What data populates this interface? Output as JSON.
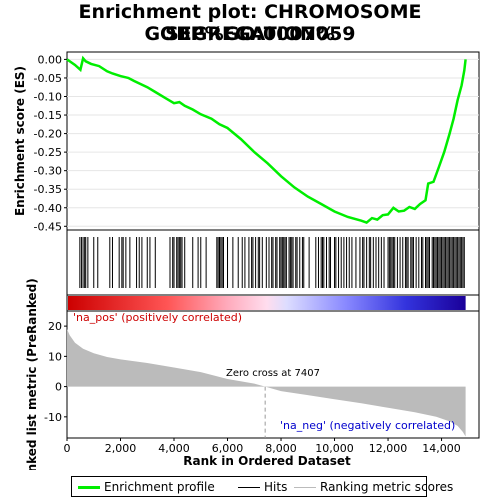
{
  "title_line1": "Enrichment plot: CHROMOSOME SEGREGATION%",
  "title_line2": "GOBP%GO:0007059",
  "colors": {
    "enrichment": "#00ee00",
    "hits": "#000000",
    "metric": "#bbbbbb",
    "pos_label": "#cc0000",
    "neg_label": "#0000cc"
  },
  "labels": {
    "pos": "'na_pos' (positively correlated)",
    "neg": "'na_neg' (negatively correlated)",
    "zero_cross": "Zero cross at 7407"
  },
  "legend": {
    "enrichment": "Enrichment profile",
    "hits": "Hits",
    "metric": "Ranking metric scores"
  },
  "chart_data": [
    {
      "type": "line",
      "ylabel": "Enrichment score (ES)",
      "ylim": [
        -0.46,
        0.02
      ],
      "yticks": [
        0.0,
        -0.05,
        -0.1,
        -0.15,
        -0.2,
        -0.25,
        -0.3,
        -0.35,
        -0.4,
        -0.45
      ],
      "ytick_labels": [
        "0.00",
        "-0.05",
        "-0.10",
        "-0.15",
        "-0.20",
        "-0.25",
        "-0.30",
        "-0.35",
        "-0.40",
        "-0.45"
      ],
      "x": [
        0,
        300,
        500,
        600,
        700,
        900,
        1200,
        1500,
        1700,
        2000,
        2300,
        2500,
        3000,
        3300,
        3700,
        4000,
        4200,
        4400,
        4700,
        5000,
        5400,
        5700,
        6000,
        6500,
        7000,
        7500,
        8000,
        8500,
        9000,
        9500,
        10000,
        10500,
        11000,
        11200,
        11400,
        11600,
        11800,
        12000,
        12200,
        12400,
        12600,
        12800,
        13000,
        13200,
        13400,
        13500,
        13700,
        13900,
        14100,
        14300,
        14450,
        14600,
        14750,
        14850,
        14900
      ],
      "series": [
        {
          "values": [
            0.0,
            -0.015,
            -0.028,
            0.003,
            -0.005,
            -0.012,
            -0.018,
            -0.032,
            -0.038,
            -0.045,
            -0.05,
            -0.058,
            -0.075,
            -0.088,
            -0.105,
            -0.118,
            -0.115,
            -0.125,
            -0.135,
            -0.148,
            -0.16,
            -0.175,
            -0.185,
            -0.215,
            -0.25,
            -0.28,
            -0.315,
            -0.345,
            -0.37,
            -0.39,
            -0.41,
            -0.425,
            -0.435,
            -0.44,
            -0.428,
            -0.432,
            -0.42,
            -0.418,
            -0.4,
            -0.41,
            -0.408,
            -0.398,
            -0.403,
            -0.39,
            -0.38,
            -0.335,
            -0.33,
            -0.29,
            -0.25,
            -0.2,
            -0.16,
            -0.11,
            -0.07,
            -0.03,
            0.0
          ]
        }
      ]
    },
    {
      "type": "area",
      "xlabel": "Rank in Ordered Dataset",
      "ylabel": "Ranked list metric (PreRanked)",
      "xlim": [
        0,
        15400
      ],
      "ylim": [
        -17,
        25
      ],
      "xticks": [
        0,
        2000,
        4000,
        6000,
        8000,
        10000,
        12000,
        14000
      ],
      "xtick_labels": [
        "0",
        "2,000",
        "4,000",
        "6,000",
        "8,000",
        "10,000",
        "12,000",
        "14,000"
      ],
      "yticks": [
        20,
        10,
        0,
        -10
      ],
      "ytick_labels": [
        "20",
        "10",
        "0",
        "-10"
      ],
      "x": [
        0,
        100,
        300,
        600,
        1000,
        1500,
        2000,
        3000,
        4000,
        5000,
        6000,
        7000,
        7407,
        8000,
        9000,
        10000,
        11000,
        12000,
        13000,
        13800,
        14300,
        14600,
        14800,
        14900
      ],
      "series": [
        {
          "values": [
            19,
            17,
            14.5,
            12.5,
            11,
            9.8,
            9,
            7.8,
            6.3,
            4.8,
            2.5,
            1.0,
            0,
            -1.5,
            -2.8,
            -4.2,
            -5.5,
            -7.0,
            -8.5,
            -10.0,
            -11.5,
            -13.0,
            -15.0,
            -16.5
          ]
        }
      ],
      "zero_cross": 7407,
      "hits": [
        480,
        540,
        600,
        660,
        700,
        780,
        1000,
        1150,
        1600,
        1700,
        1950,
        2050,
        2100,
        2200,
        2350,
        2600,
        2700,
        2800,
        3000,
        3100,
        3300,
        3850,
        3950,
        4000,
        4100,
        4150,
        4200,
        4250,
        4300,
        4400,
        4700,
        4900,
        5000,
        5200,
        5600,
        5650,
        5700,
        5750,
        5800,
        5850,
        6000,
        6200,
        6400,
        6550,
        6650,
        6800,
        6900,
        6950,
        7050,
        7150,
        7200,
        7300,
        7450,
        7550,
        7650,
        7700,
        7800,
        7850,
        7950,
        8000,
        8050,
        8100,
        8150,
        8200,
        8300,
        8350,
        8400,
        8450,
        8550,
        8600,
        8700,
        8800,
        8850,
        9050,
        9300,
        9400,
        9500,
        9550,
        9600,
        9700,
        9800,
        9850,
        10000,
        10050,
        10150,
        10250,
        10350,
        10450,
        10550,
        10650,
        10800,
        10950,
        11050,
        11100,
        11200,
        11300,
        11350,
        11450,
        11550,
        11650,
        11750,
        11850,
        12000,
        12050,
        12100,
        12150,
        12200,
        12250,
        12350,
        12450,
        12550,
        12650,
        12700,
        12750,
        12850,
        12900,
        12950,
        13050,
        13150,
        13250,
        13300,
        13400,
        13450,
        13500,
        13550,
        13650,
        13700,
        13750,
        13800,
        13850,
        13900,
        13950,
        14000,
        14050,
        14100,
        14150,
        14200,
        14250,
        14300,
        14350,
        14400,
        14450,
        14500,
        14550,
        14600,
        14650,
        14700,
        14750,
        14800,
        14850
      ]
    }
  ]
}
